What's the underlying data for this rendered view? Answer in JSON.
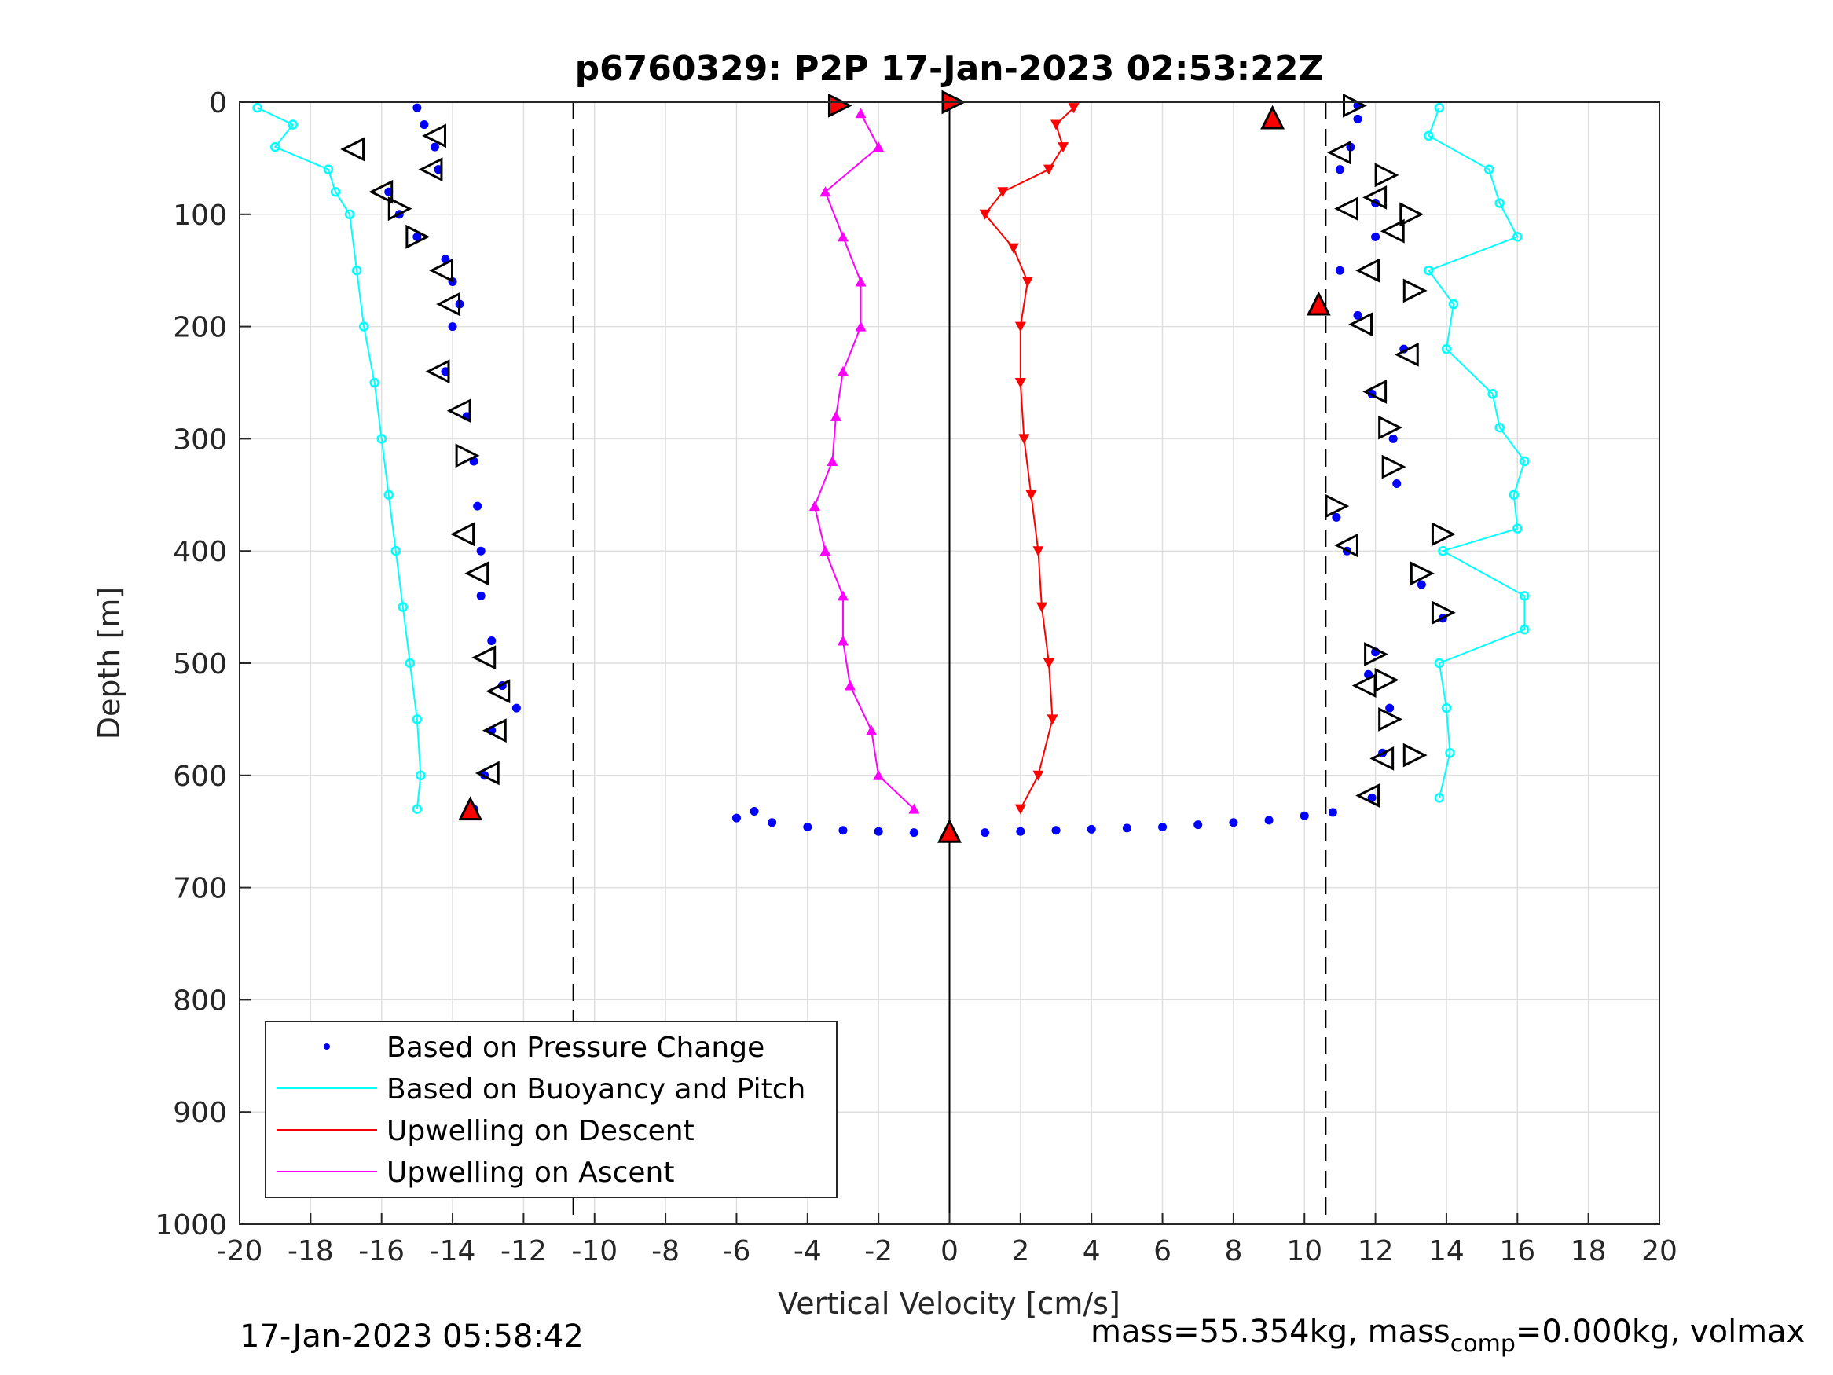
{
  "chart_data": {
    "type": "scatter",
    "title": "p6760329: P2P 17-Jan-2023 02:53:22Z",
    "xlabel": "Vertical Velocity [cm/s]",
    "ylabel": "Depth [m]",
    "xlim": [
      -20,
      20
    ],
    "ylim": [
      0,
      1000
    ],
    "y_reversed": true,
    "grid": true,
    "xticks": [
      "-20",
      "-18",
      "-16",
      "-14",
      "-12",
      "-10",
      "-8",
      "-6",
      "-4",
      "-2",
      "0",
      "2",
      "4",
      "6",
      "8",
      "10",
      "12",
      "14",
      "16",
      "18",
      "20"
    ],
    "yticks": [
      "0",
      "100",
      "200",
      "300",
      "400",
      "500",
      "600",
      "700",
      "800",
      "900",
      "1000"
    ],
    "reference_lines": [
      {
        "x": -10.6,
        "style": "dashed"
      },
      {
        "x": 0,
        "style": "solid"
      },
      {
        "x": 10.6,
        "style": "dashed"
      }
    ],
    "legend": {
      "placement": "bottom-left",
      "entries": [
        {
          "label": "Based on Pressure Change",
          "color": "#0000ff",
          "marker": "dot"
        },
        {
          "label": "Based on Buoyancy and Pitch",
          "color": "#00ffff",
          "marker": "line"
        },
        {
          "label": "Upwelling on Descent",
          "color": "#ff0000",
          "marker": "line"
        },
        {
          "label": "Upwelling on Ascent",
          "color": "#ff00ff",
          "marker": "line"
        }
      ]
    },
    "series": [
      {
        "key": "pressure_descent",
        "color": "#0000ff",
        "depth": [
          5,
          20,
          40,
          60,
          80,
          100,
          120,
          140,
          160,
          180,
          200,
          240,
          280,
          320,
          360,
          400,
          440,
          480,
          520,
          540,
          560,
          600,
          630
        ],
        "velocity": [
          -15.0,
          -14.8,
          -14.5,
          -14.4,
          -15.8,
          -15.5,
          -15.0,
          -14.2,
          -14.0,
          -13.8,
          -14.0,
          -14.2,
          -13.6,
          -13.4,
          -13.3,
          -13.2,
          -13.2,
          -12.9,
          -12.6,
          -12.2,
          -12.9,
          -13.1,
          -13.4
        ]
      },
      {
        "key": "pressure_ascent",
        "color": "#0000ff",
        "depth": [
          620,
          580,
          540,
          510,
          490,
          460,
          430,
          400,
          370,
          340,
          300,
          260,
          220,
          190,
          150,
          120,
          90,
          60,
          40,
          15,
          3
        ],
        "velocity": [
          11.9,
          12.2,
          12.4,
          11.8,
          12.0,
          13.9,
          13.3,
          11.2,
          10.9,
          12.6,
          12.5,
          11.9,
          12.8,
          11.5,
          11.0,
          12.0,
          12.0,
          11.0,
          11.3,
          11.5,
          11.5
        ]
      },
      {
        "key": "pressure_bottom",
        "color": "#0000ff",
        "depth": [
          632,
          638,
          642,
          646,
          649,
          650,
          651,
          652,
          651,
          650,
          649,
          648,
          647,
          646,
          644,
          642,
          640,
          636,
          633
        ],
        "velocity": [
          -5.5,
          -6.0,
          -5.0,
          -4.0,
          -3.0,
          -2.0,
          -1.0,
          0.0,
          1.0,
          2.0,
          3.0,
          4.0,
          5.0,
          6.0,
          7.0,
          8.0,
          9.0,
          10.0,
          10.8
        ]
      },
      {
        "key": "buoyancy_descent",
        "color": "#00ffff",
        "depth": [
          5,
          20,
          40,
          60,
          80,
          100,
          150,
          200,
          250,
          300,
          350,
          400,
          450,
          500,
          550,
          600,
          630
        ],
        "velocity": [
          -19.5,
          -18.5,
          -19.0,
          -17.5,
          -17.3,
          -16.9,
          -16.7,
          -16.5,
          -16.2,
          -16.0,
          -15.8,
          -15.6,
          -15.4,
          -15.2,
          -15.0,
          -14.9,
          -15.0
        ]
      },
      {
        "key": "buoyancy_ascent",
        "color": "#00ffff",
        "depth": [
          620,
          580,
          540,
          500,
          470,
          440,
          400,
          380,
          350,
          320,
          290,
          260,
          220,
          180,
          150,
          120,
          90,
          60,
          30,
          5
        ],
        "velocity": [
          13.8,
          14.1,
          14.0,
          13.8,
          16.2,
          16.2,
          13.9,
          16.0,
          15.9,
          16.2,
          15.5,
          15.3,
          14.0,
          14.2,
          13.5,
          16.0,
          15.5,
          15.2,
          13.5,
          13.8
        ]
      },
      {
        "key": "upwelling_descent",
        "name": "Upwelling on Descent",
        "color": "#ff0000",
        "depth": [
          5,
          20,
          40,
          60,
          80,
          100,
          130,
          160,
          200,
          250,
          300,
          350,
          400,
          450,
          500,
          550,
          600,
          630
        ],
        "velocity": [
          3.5,
          3.0,
          3.2,
          2.8,
          1.5,
          1.0,
          1.8,
          2.2,
          2.0,
          2.0,
          2.1,
          2.3,
          2.5,
          2.6,
          2.8,
          2.9,
          2.5,
          2.0
        ]
      },
      {
        "key": "upwelling_ascent",
        "name": "Upwelling on Ascent",
        "color": "#ff00ff",
        "depth": [
          630,
          600,
          560,
          520,
          480,
          440,
          400,
          360,
          320,
          280,
          240,
          200,
          160,
          120,
          80,
          40,
          10
        ],
        "velocity": [
          -1.0,
          -2.0,
          -2.2,
          -2.8,
          -3.0,
          -3.0,
          -3.5,
          -3.8,
          -3.3,
          -3.2,
          -3.0,
          -2.5,
          -2.5,
          -3.0,
          -3.5,
          -2.0,
          -2.5
        ]
      }
    ],
    "markers": [
      {
        "velocity": -16.8,
        "depth": 42,
        "shape": "left"
      },
      {
        "velocity": -14.5,
        "depth": 30,
        "shape": "left"
      },
      {
        "velocity": -14.6,
        "depth": 60,
        "shape": "left"
      },
      {
        "velocity": -16.0,
        "depth": 80,
        "shape": "left"
      },
      {
        "velocity": -15.5,
        "depth": 95,
        "shape": "right"
      },
      {
        "velocity": -15.0,
        "depth": 120,
        "shape": "right"
      },
      {
        "velocity": -14.3,
        "depth": 150,
        "shape": "left"
      },
      {
        "velocity": -14.1,
        "depth": 180,
        "shape": "left"
      },
      {
        "velocity": -14.4,
        "depth": 240,
        "shape": "left"
      },
      {
        "velocity": -13.8,
        "depth": 275,
        "shape": "left"
      },
      {
        "velocity": -13.6,
        "depth": 315,
        "shape": "right"
      },
      {
        "velocity": -13.7,
        "depth": 385,
        "shape": "left"
      },
      {
        "velocity": -13.3,
        "depth": 420,
        "shape": "left"
      },
      {
        "velocity": -13.1,
        "depth": 495,
        "shape": "left"
      },
      {
        "velocity": -12.7,
        "depth": 525,
        "shape": "left"
      },
      {
        "velocity": -12.8,
        "depth": 560,
        "shape": "left"
      },
      {
        "velocity": -13.0,
        "depth": 598,
        "shape": "left"
      },
      {
        "velocity": -13.5,
        "depth": 630,
        "shape": "up",
        "filled": true
      },
      {
        "velocity": -3.1,
        "depth": 3,
        "shape": "right",
        "filled": true
      },
      {
        "velocity": 0.1,
        "depth": 0,
        "shape": "right",
        "filled": true
      },
      {
        "velocity": 0.0,
        "depth": 650,
        "shape": "up",
        "filled": true
      },
      {
        "velocity": 9.1,
        "depth": 14,
        "shape": "up",
        "filled": true
      },
      {
        "velocity": 10.4,
        "depth": 180,
        "shape": "up",
        "filled": true
      },
      {
        "velocity": 11.4,
        "depth": 3,
        "shape": "right"
      },
      {
        "velocity": 11.0,
        "depth": 45,
        "shape": "left"
      },
      {
        "velocity": 12.3,
        "depth": 65,
        "shape": "right"
      },
      {
        "velocity": 12.0,
        "depth": 85,
        "shape": "left"
      },
      {
        "velocity": 11.2,
        "depth": 95,
        "shape": "left"
      },
      {
        "velocity": 13.0,
        "depth": 100,
        "shape": "right"
      },
      {
        "velocity": 12.5,
        "depth": 115,
        "shape": "left"
      },
      {
        "velocity": 11.8,
        "depth": 150,
        "shape": "left"
      },
      {
        "velocity": 13.1,
        "depth": 168,
        "shape": "right"
      },
      {
        "velocity": 11.6,
        "depth": 198,
        "shape": "left"
      },
      {
        "velocity": 12.9,
        "depth": 225,
        "shape": "left"
      },
      {
        "velocity": 12.0,
        "depth": 258,
        "shape": "left"
      },
      {
        "velocity": 12.4,
        "depth": 290,
        "shape": "right"
      },
      {
        "velocity": 12.5,
        "depth": 325,
        "shape": "right"
      },
      {
        "velocity": 10.9,
        "depth": 360,
        "shape": "right"
      },
      {
        "velocity": 11.2,
        "depth": 395,
        "shape": "left"
      },
      {
        "velocity": 13.9,
        "depth": 385,
        "shape": "right"
      },
      {
        "velocity": 13.3,
        "depth": 420,
        "shape": "right"
      },
      {
        "velocity": 13.9,
        "depth": 455,
        "shape": "right"
      },
      {
        "velocity": 12.0,
        "depth": 492,
        "shape": "right"
      },
      {
        "velocity": 11.7,
        "depth": 520,
        "shape": "left"
      },
      {
        "velocity": 12.3,
        "depth": 515,
        "shape": "right"
      },
      {
        "velocity": 12.4,
        "depth": 550,
        "shape": "right"
      },
      {
        "velocity": 12.2,
        "depth": 585,
        "shape": "left"
      },
      {
        "velocity": 13.1,
        "depth": 582,
        "shape": "right"
      },
      {
        "velocity": 11.8,
        "depth": 618,
        "shape": "left"
      }
    ]
  },
  "footer": {
    "timestamp": "17-Jan-2023 05:58:42",
    "mass_pre": "mass=55.354kg, mass",
    "mass_sub": "comp",
    "mass_post": "=0.000kg, volmax"
  }
}
